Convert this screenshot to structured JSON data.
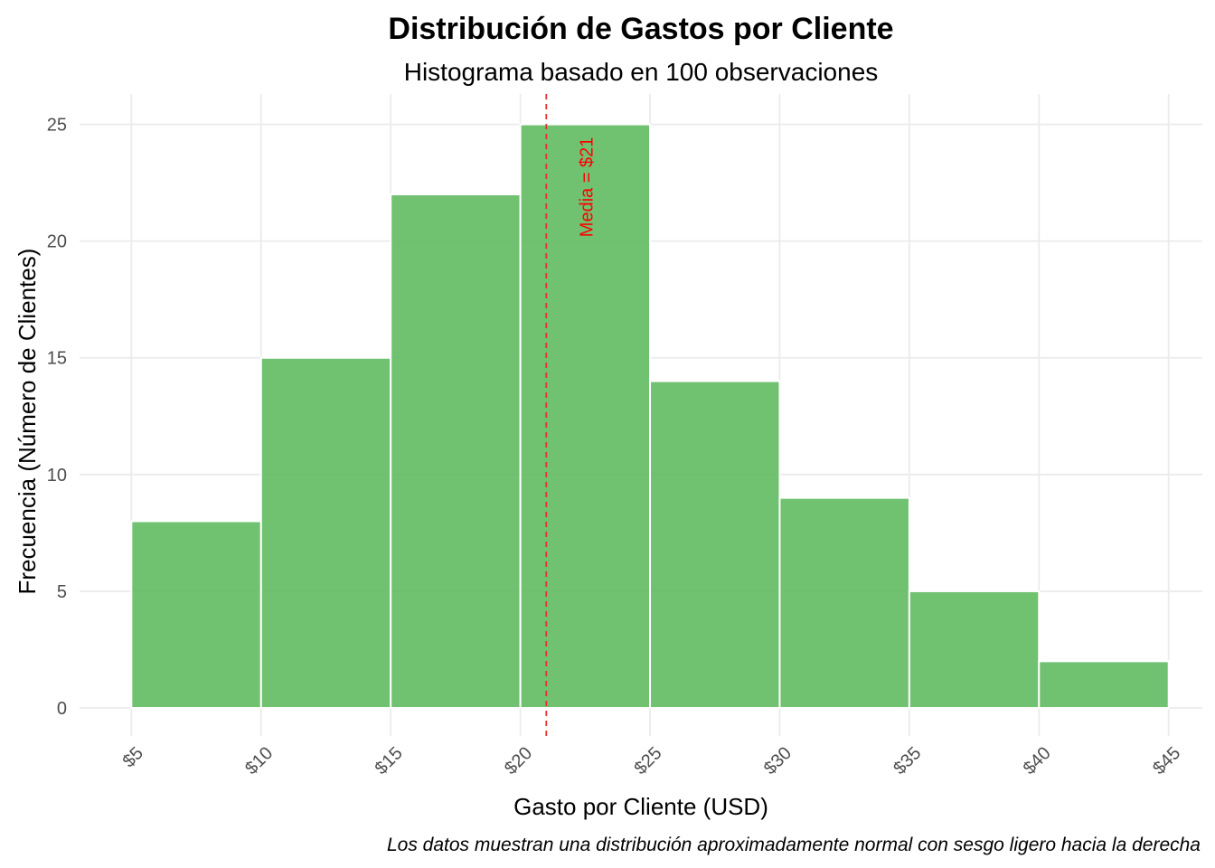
{
  "chart_data": {
    "type": "bar",
    "title": "Distribución de Gastos por Cliente",
    "subtitle": "Histograma basado en 100 observaciones",
    "xlabel": "Gasto por Cliente (USD)",
    "ylabel": "Frecuencia (Número de Clientes)",
    "caption": "Los datos muestran una distribución aproximadamente normal con sesgo ligero hacia la derecha",
    "bins": [
      {
        "start": 5,
        "end": 10,
        "count": 8
      },
      {
        "start": 10,
        "end": 15,
        "count": 15
      },
      {
        "start": 15,
        "end": 20,
        "count": 22
      },
      {
        "start": 20,
        "end": 25,
        "count": 25
      },
      {
        "start": 25,
        "end": 30,
        "count": 14
      },
      {
        "start": 30,
        "end": 35,
        "count": 9
      },
      {
        "start": 35,
        "end": 40,
        "count": 5
      },
      {
        "start": 40,
        "end": 45,
        "count": 2
      }
    ],
    "x_ticks": [
      5,
      10,
      15,
      20,
      25,
      30,
      35,
      40,
      45
    ],
    "x_tick_labels": [
      "$5",
      "$10",
      "$15",
      "$20",
      "$25",
      "$30",
      "$35",
      "$40",
      "$45"
    ],
    "y_ticks": [
      0,
      5,
      10,
      15,
      20,
      25
    ],
    "y_tick_labels": [
      "0",
      "5",
      "10",
      "15",
      "20",
      "25"
    ],
    "xlim": [
      3.0,
      46.3
    ],
    "ylim": [
      -1.2,
      26.3
    ],
    "mean": 21,
    "mean_label": "Media = $21",
    "grid": true,
    "legend": "none",
    "colors": {
      "bar": "#5CB85C",
      "mean_line": "#E8302E",
      "mean_label": "#FF0000",
      "grid": "#EBEBEB"
    }
  }
}
